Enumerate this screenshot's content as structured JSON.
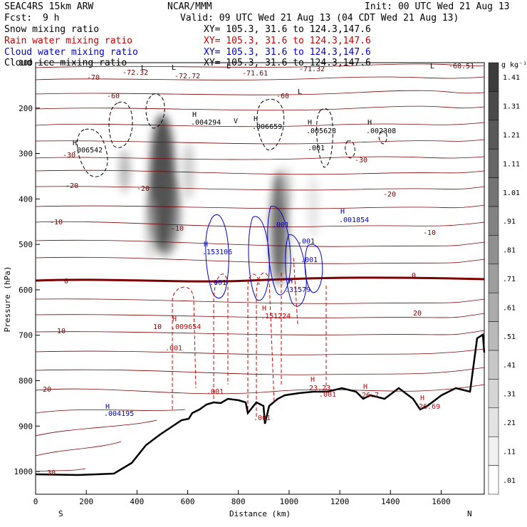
{
  "header": {
    "model": "SEAC4RS 15km ARW",
    "org": "NCAR/MMM",
    "init": "Init: 00 UTC Wed 21 Aug 13",
    "fcst_label": "Fcst:",
    "fcst_value": "9 h",
    "valid": "Valid: 09 UTC Wed 21 Aug 13 (04 CDT Wed 21 Aug 13)",
    "fields": [
      {
        "name": "Snow mixing ratio",
        "xy": "XY= 105.3, 31.6 to 124.3,147.6",
        "color": "#000000"
      },
      {
        "name": "Rain water mixing ratio",
        "xy": "XY= 105.3, 31.6 to 124.3,147.6",
        "color": "#cc0000"
      },
      {
        "name": "Cloud water mixing ratio",
        "xy": "XY= 105.3, 31.6 to 124.3,147.6",
        "color": "#0000cc"
      },
      {
        "name": "Cloud ice mixing ratio",
        "xy": "XY= 105.3, 31.6 to 124.3,147.6",
        "color": "#000000"
      }
    ]
  },
  "colorbar": {
    "unit": "g kg⁻¹",
    "levels": [
      "1.41",
      "1.31",
      "1.21",
      "1.11",
      "1.01",
      ".91",
      ".81",
      ".71",
      ".61",
      ".51",
      ".41",
      ".31",
      ".21",
      ".11",
      ".01"
    ]
  },
  "chart_data": {
    "type": "contour-cross-section",
    "xlabel": "Distance (km)",
    "ylabel": "Pressure (hPa)",
    "xlim": [
      0,
      1770
    ],
    "ylim": [
      1050,
      100
    ],
    "x_ticks": [
      "0",
      "200",
      "400",
      "600",
      "800",
      "1000",
      "1200",
      "1400",
      "1600"
    ],
    "y_ticks": [
      "100",
      "200",
      "300",
      "400",
      "500",
      "600",
      "700",
      "800",
      "900",
      "1000"
    ],
    "x_end_labels": {
      "left": "S",
      "right": "N"
    },
    "temperature_labels": [
      "-70",
      "-72.32",
      "-72.72",
      "-71.61",
      "-71.32",
      "-68.51",
      "-60",
      "-60",
      "-30",
      "-30",
      "-20",
      "-20",
      "-20",
      "-10",
      "-10",
      "-10",
      "0",
      "0",
      "10",
      "10",
      "20",
      "20",
      "30"
    ],
    "snow_maxima": [
      ".006542",
      ".004294",
      ".006659",
      ".005623",
      ".002308",
      ".001"
    ],
    "cloud_water_labels": [
      ".153106",
      ".001",
      ".001",
      ".001",
      ".001",
      ".31579",
      "H",
      ".001854",
      ".004195"
    ],
    "rain_labels": [
      ".009654",
      ".001",
      ".001",
      ".001",
      ".151224",
      ".001",
      "23.23",
      "26.7",
      "26.69"
    ],
    "extrema_symbol": "H",
    "ice_label": "V",
    "ice_low_labels": [
      "L",
      "L",
      "L",
      "L",
      "L"
    ],
    "colors": {
      "snow": "#000000",
      "rain": "#cc0000",
      "cloud": "#0000cc",
      "temperature": "#7a0000",
      "terrain": "#000000"
    }
  }
}
